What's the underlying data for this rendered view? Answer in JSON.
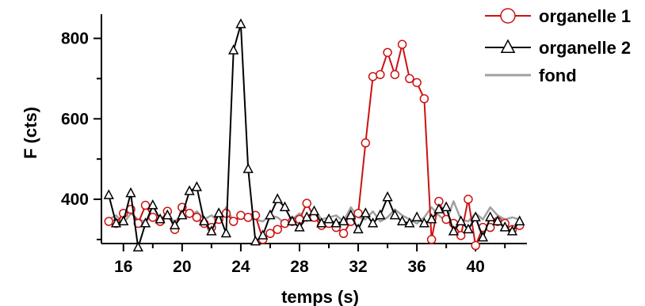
{
  "chart_data": {
    "type": "line",
    "title": "",
    "xlabel": "temps (s)",
    "ylabel": "F (cts)",
    "xlim": [
      14.5,
      43.5
    ],
    "ylim": [
      290,
      860
    ],
    "x_ticks": [
      16,
      20,
      24,
      28,
      32,
      36,
      40
    ],
    "x_tick_labels": [
      "16",
      "20",
      "24",
      "28",
      "32",
      "36",
      "40"
    ],
    "y_ticks": [
      400,
      600,
      800
    ],
    "y_tick_labels": [
      "400",
      "600",
      "800"
    ],
    "legend_position": "top-right",
    "grid": false,
    "series": [
      {
        "name": "organelle 1",
        "color": "#cc1111",
        "marker": "circle",
        "x": [
          15,
          15.5,
          16,
          16.5,
          17,
          17.5,
          18,
          18.5,
          19,
          19.5,
          20,
          20.5,
          21,
          21.5,
          22,
          22.5,
          23,
          23.5,
          24,
          24.5,
          25,
          25.5,
          26,
          26.5,
          27,
          27.5,
          28,
          28.5,
          29,
          29.5,
          30,
          30.5,
          31,
          31.5,
          32,
          32.5,
          33,
          33.5,
          34,
          34.5,
          35,
          35.5,
          36,
          36.5,
          37,
          37.5,
          38,
          38.5,
          39,
          39.5,
          40,
          40.5,
          41,
          41.5,
          42,
          42.5,
          43
        ],
        "y": [
          345,
          340,
          365,
          375,
          340,
          385,
          355,
          345,
          370,
          325,
          380,
          365,
          355,
          340,
          330,
          350,
          365,
          345,
          360,
          355,
          360,
          300,
          315,
          325,
          340,
          345,
          350,
          390,
          355,
          335,
          340,
          330,
          315,
          345,
          365,
          540,
          705,
          710,
          765,
          710,
          785,
          700,
          690,
          650,
          300,
          395,
          350,
          340,
          310,
          400,
          285,
          330,
          330,
          345,
          340,
          325,
          335
        ]
      },
      {
        "name": "organelle 2",
        "color": "#000000",
        "marker": "triangle",
        "x": [
          15,
          15.5,
          16,
          16.5,
          17,
          17.5,
          18,
          18.5,
          19,
          19.5,
          20,
          20.5,
          21,
          21.5,
          22,
          22.5,
          23,
          23.5,
          24,
          24.5,
          25,
          25.5,
          26,
          26.5,
          27,
          27.5,
          28,
          28.5,
          29,
          29.5,
          30,
          30.5,
          31,
          31.5,
          32,
          32.5,
          33,
          33.5,
          34,
          34.5,
          35,
          35.5,
          36,
          36.5,
          37,
          37.5,
          38,
          38.5,
          39,
          39.5,
          40,
          40.5,
          41,
          41.5,
          42,
          42.5,
          43
        ],
        "y": [
          410,
          340,
          345,
          415,
          280,
          340,
          385,
          350,
          360,
          335,
          360,
          420,
          430,
          345,
          320,
          365,
          315,
          770,
          835,
          475,
          295,
          310,
          360,
          400,
          380,
          345,
          330,
          355,
          370,
          340,
          350,
          340,
          345,
          360,
          325,
          365,
          340,
          360,
          405,
          360,
          345,
          340,
          355,
          340,
          350,
          375,
          380,
          320,
          345,
          325,
          355,
          305,
          355,
          345,
          330,
          320,
          345
        ]
      },
      {
        "name": "fond",
        "color": "#a0a0a0",
        "marker": "none",
        "x": [
          15,
          15.5,
          16,
          16.5,
          17,
          17.5,
          18,
          18.5,
          19,
          19.5,
          20,
          20.5,
          21,
          21.5,
          22,
          22.5,
          23,
          23.5,
          24,
          24.5,
          25,
          25.5,
          26,
          26.5,
          27,
          27.5,
          28,
          28.5,
          29,
          29.5,
          30,
          30.5,
          31,
          31.5,
          32,
          32.5,
          33,
          33.5,
          34,
          34.5,
          35,
          35.5,
          36,
          36.5,
          37,
          37.5,
          38,
          38.5,
          39,
          39.5,
          40,
          40.5,
          41,
          41.5,
          42,
          42.5,
          43
        ],
        "y": [
          350,
          360,
          340,
          365,
          350,
          345,
          360,
          350,
          355,
          345,
          360,
          355,
          370,
          350,
          360,
          345,
          380,
          345,
          355,
          360,
          350,
          345,
          360,
          355,
          340,
          350,
          365,
          345,
          375,
          350,
          355,
          360,
          345,
          380,
          355,
          350,
          370,
          345,
          355,
          375,
          360,
          350,
          340,
          355,
          380,
          360,
          345,
          395,
          350,
          345,
          365,
          350,
          380,
          360,
          350,
          355,
          350
        ]
      }
    ]
  }
}
